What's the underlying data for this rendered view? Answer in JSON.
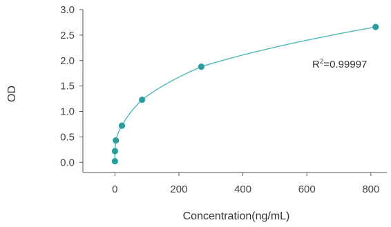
{
  "chart_data": {
    "type": "scatter",
    "title": "",
    "xlabel": "Concentration(ng/mL)",
    "ylabel": "OD",
    "xlim": [
      -100,
      850
    ],
    "ylim": [
      -0.2,
      3.0
    ],
    "x_ticks": [
      0,
      200,
      400,
      600,
      800
    ],
    "x_tick_labels": [
      "0",
      "200",
      "400",
      "600",
      "800"
    ],
    "y_ticks": [
      0.0,
      0.5,
      1.0,
      1.5,
      2.0,
      2.5,
      3.0
    ],
    "y_tick_labels": [
      "0.0",
      "0.5",
      "1.0",
      "1.5",
      "2.0",
      "2.5",
      "3.0"
    ],
    "grid": false,
    "series": [
      {
        "color": "#2a9d9f",
        "points": [
          {
            "x": 0,
            "y": 0.02
          },
          {
            "x": 0.3,
            "y": 0.22
          },
          {
            "x": 3,
            "y": 0.43
          },
          {
            "x": 22,
            "y": 0.72
          },
          {
            "x": 85,
            "y": 1.23
          },
          {
            "x": 270,
            "y": 1.88
          },
          {
            "x": 815,
            "y": 2.66
          }
        ]
      }
    ],
    "fit_curve": {
      "color": "#4fb8b8"
    },
    "annotation": {
      "prefix": "R",
      "superscript": "2",
      "suffix": "=0.99997"
    }
  }
}
